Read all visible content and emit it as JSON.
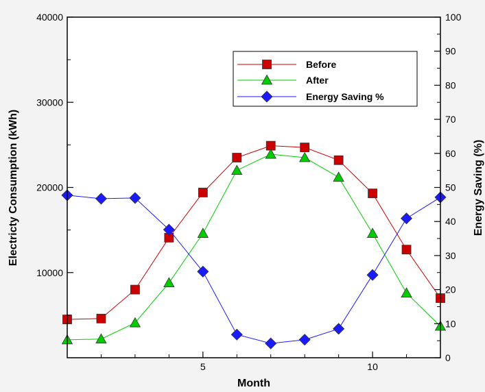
{
  "chart_data": {
    "type": "line",
    "xlabel": "Month",
    "ylabel_left": "Electricty Consumption (kWh)",
    "ylabel_right": "Energy Saving (%)",
    "xlim": [
      1,
      12
    ],
    "ylim_left": [
      0,
      40000
    ],
    "ylim_right": [
      0,
      100
    ],
    "x_ticks": [
      5,
      10
    ],
    "y_ticks_left": [
      10000,
      20000,
      30000,
      40000
    ],
    "y_ticks_right": [
      0,
      10,
      20,
      30,
      40,
      50,
      60,
      70,
      80,
      90,
      100
    ],
    "grid": false,
    "legend_position": "top-right",
    "x": [
      1,
      2,
      3,
      4,
      5,
      6,
      7,
      8,
      9,
      10,
      11,
      12
    ],
    "series": [
      {
        "name": "Before",
        "axis": "left",
        "color": "#cc0000",
        "marker": "square",
        "values": [
          4500,
          4600,
          8000,
          14100,
          19400,
          23500,
          24900,
          24700,
          23200,
          19300,
          12700,
          7000
        ]
      },
      {
        "name": "After",
        "axis": "left",
        "color": "#00cc00",
        "marker": "triangle",
        "values": [
          2100,
          2200,
          4100,
          8800,
          14600,
          22000,
          23900,
          23500,
          21200,
          14600,
          7600,
          3700
        ]
      },
      {
        "name": "Energy Saving %",
        "axis": "right",
        "color": "#1a1aff",
        "marker": "diamond",
        "values": [
          47.7,
          46.7,
          46.9,
          37.6,
          25.3,
          6.8,
          4.2,
          5.3,
          8.5,
          24.3,
          40.9,
          47.1
        ]
      }
    ]
  }
}
